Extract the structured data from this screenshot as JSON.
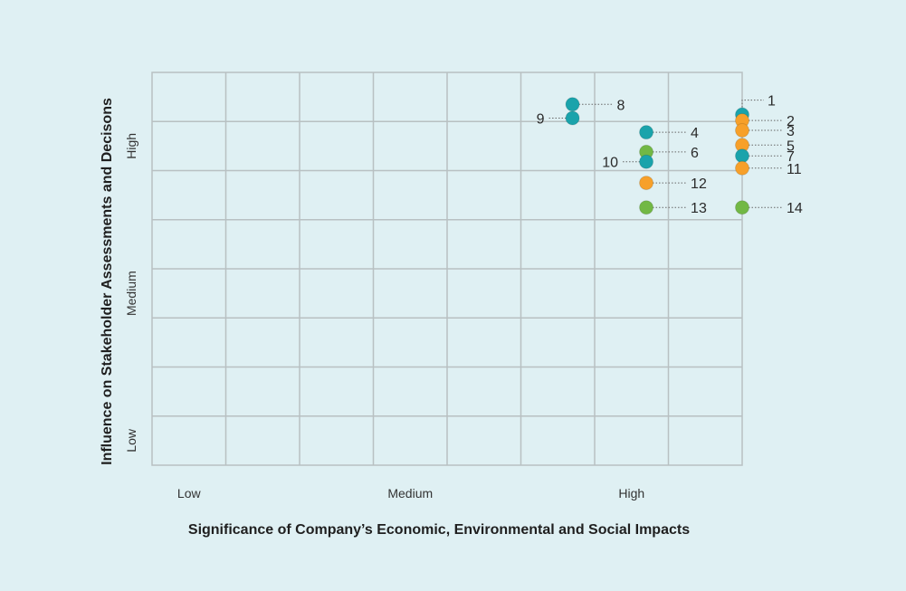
{
  "chart_data": {
    "type": "scatter",
    "title": "",
    "xlabel": "Significance of Company’s Economic, Environmental and Social Impacts",
    "ylabel": "Influence on Stakeholder Assessments and Decisons",
    "xlim": [
      0,
      8
    ],
    "ylim": [
      0,
      8
    ],
    "grid": true,
    "x_ticks": [
      {
        "label": "Low",
        "value": 1
      },
      {
        "label": "Medium",
        "value": 4
      },
      {
        "label": "High",
        "value": 7
      }
    ],
    "y_ticks": [
      {
        "label": "Low",
        "value": 1
      },
      {
        "label": "Medium",
        "value": 4
      },
      {
        "label": "High",
        "value": 7
      }
    ],
    "colors": {
      "teal": "#1aa3ab",
      "orange": "#f7a02a",
      "green": "#72b845",
      "grid": "#b8c0c2",
      "leader": "#666666"
    },
    "points": [
      {
        "label": "1",
        "x": 8.0,
        "y": 7.14,
        "color": "teal",
        "label_side": "upper-right"
      },
      {
        "label": "2",
        "x": 8.0,
        "y": 7.02,
        "color": "orange",
        "label_side": "right"
      },
      {
        "label": "3",
        "x": 8.0,
        "y": 6.82,
        "color": "orange",
        "label_side": "right"
      },
      {
        "label": "4",
        "x": 6.7,
        "y": 6.78,
        "color": "teal",
        "label_side": "right"
      },
      {
        "label": "5",
        "x": 8.0,
        "y": 6.52,
        "color": "orange",
        "label_side": "right"
      },
      {
        "label": "6",
        "x": 6.7,
        "y": 6.38,
        "color": "green",
        "label_side": "right"
      },
      {
        "label": "7",
        "x": 8.0,
        "y": 6.3,
        "color": "teal",
        "label_side": "right"
      },
      {
        "label": "8",
        "x": 5.7,
        "y": 7.35,
        "color": "teal",
        "label_side": "right"
      },
      {
        "label": "9",
        "x": 5.7,
        "y": 7.07,
        "color": "teal",
        "label_side": "left"
      },
      {
        "label": "10",
        "x": 6.7,
        "y": 6.18,
        "color": "teal",
        "label_side": "left"
      },
      {
        "label": "11",
        "x": 8.0,
        "y": 6.05,
        "color": "orange",
        "label_side": "right"
      },
      {
        "label": "12",
        "x": 6.7,
        "y": 5.75,
        "color": "orange",
        "label_side": "right"
      },
      {
        "label": "13",
        "x": 6.7,
        "y": 5.25,
        "color": "green",
        "label_side": "right"
      },
      {
        "label": "14",
        "x": 8.0,
        "y": 5.25,
        "color": "green",
        "label_side": "right"
      }
    ]
  }
}
